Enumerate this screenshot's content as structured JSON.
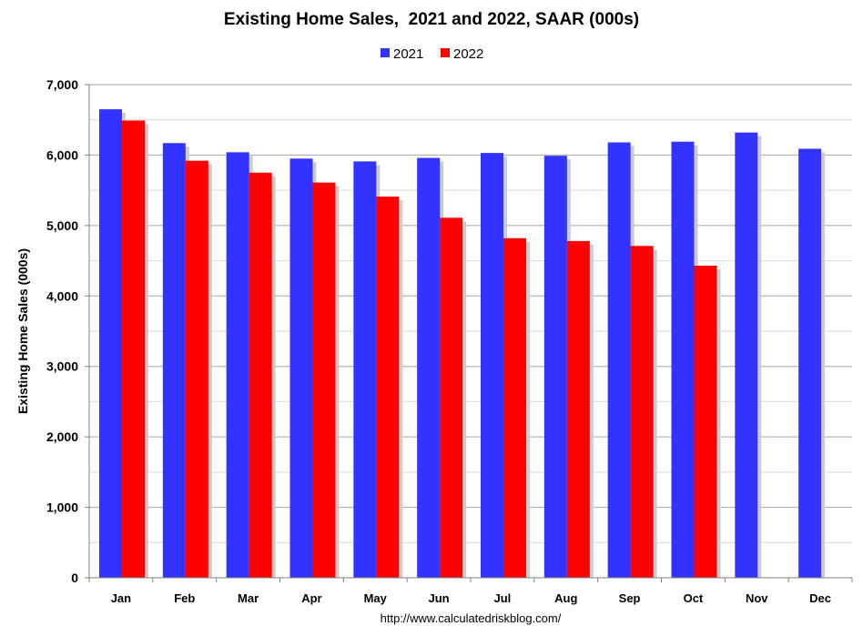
{
  "chart_data": {
    "type": "bar",
    "title": "Existing Home Sales,  2021 and 2022, SAAR (000s)",
    "xlabel": "",
    "ylabel": "Existing Home Sales (000s)",
    "ylim": [
      0,
      7000
    ],
    "yticks": [
      0,
      1000,
      2000,
      3000,
      4000,
      5000,
      6000,
      7000
    ],
    "ytick_labels": [
      "0",
      "1,000",
      "2,000",
      "3,000",
      "4,000",
      "5,000",
      "6,000",
      "7,000"
    ],
    "grid": true,
    "legend_position": "top-center",
    "categories": [
      "Jan",
      "Feb",
      "Mar",
      "Apr",
      "May",
      "Jun",
      "Jul",
      "Aug",
      "Sep",
      "Oct",
      "Nov",
      "Dec"
    ],
    "series": [
      {
        "name": "2021",
        "color": "#3333ff",
        "values": [
          6650,
          6170,
          6040,
          5950,
          5910,
          5960,
          6030,
          5990,
          6180,
          6190,
          6320,
          6090
        ]
      },
      {
        "name": "2022",
        "color": "#ff0000",
        "values": [
          6490,
          5920,
          5750,
          5610,
          5410,
          5110,
          4820,
          4780,
          4710,
          4430,
          null,
          null
        ]
      }
    ]
  },
  "source": "http://www.calculatedriskblog.com/",
  "colors": {
    "plot_background": "#ffffff",
    "gridline": "#a6a6a6",
    "minor_gridline": "#d9d9d9",
    "bar_shadow": "#cccccc"
  }
}
